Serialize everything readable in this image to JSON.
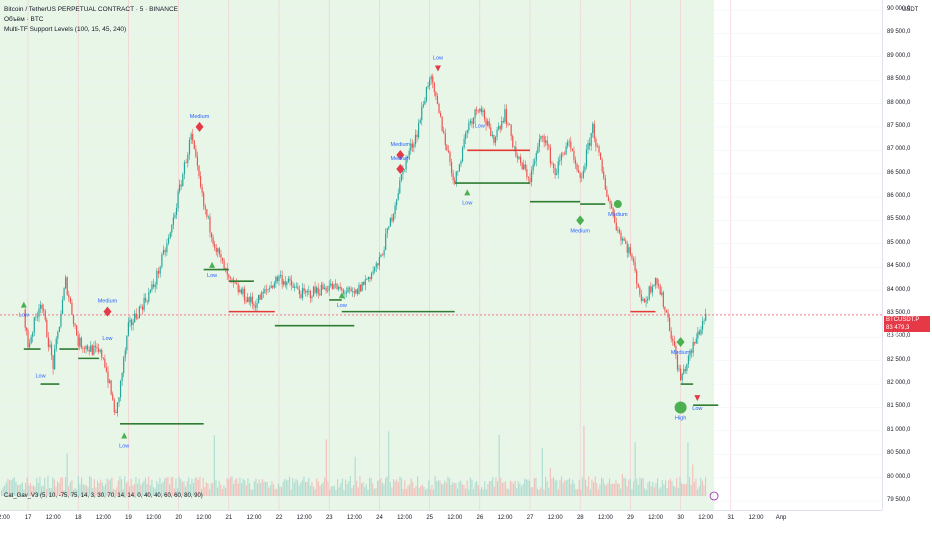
{
  "header": {
    "title": "Bitcoin / TetherUS PERPETUAL CONTRACT · 5 · BINANCE",
    "volume_label": "Объём · BTC",
    "indicator_label": "Multi-TF Support Levels (100, 15, 45, 240)"
  },
  "oscillator_label": "Cat_Gav_V3 (5, 10, -75, 75, 14, 3, 30, 70, 14, 14, 0, 40, 40, 60, 60, 80, 90)",
  "price_axis": {
    "unit": "USDT",
    "ticks": [
      "90 000,0",
      "89 500,0",
      "89 000,0",
      "88 500,0",
      "88 000,0",
      "87 500,0",
      "87 000,0",
      "86 500,0",
      "86 000,0",
      "85 500,0",
      "85 000,0",
      "84 500,0",
      "84 000,0",
      "83 500,0",
      "83 000,0",
      "82 500,0",
      "82 000,0",
      "81 500,0",
      "81 000,0",
      "80 500,0",
      "80 000,0",
      "79 500,0"
    ]
  },
  "current_price": {
    "symbol": "BTCUSDT.P",
    "price": "83 479,3",
    "countdown": "04:45"
  },
  "time_axis": {
    "ticks": [
      "2:00",
      "17",
      "12:00",
      "18",
      "12:00",
      "19",
      "12:00",
      "20",
      "12:00",
      "21",
      "12:00",
      "22",
      "12:00",
      "23",
      "12:00",
      "24",
      "12:00",
      "25",
      "12:00",
      "26",
      "12:00",
      "27",
      "12:00",
      "28",
      "12:00",
      "29",
      "12:00",
      "30",
      "12:00",
      "31",
      "12:00",
      "Апр"
    ]
  },
  "colors": {
    "background": "#ffffff",
    "session_fill": "#e8f6e8",
    "up_candle": "#26a69a",
    "down_candle": "#ef5350",
    "support_line_green": "#2e7d32",
    "support_line_red": "#e53935",
    "marker_green": "#4caf50",
    "marker_red": "#e53947",
    "label_blue": "#2962ff",
    "price_line": "#f23645"
  },
  "chart_data": {
    "type": "line",
    "symbol": "BTCUSDT.P",
    "ylim": [
      79300,
      90200
    ],
    "x_categories": [
      "16 (end)",
      "17",
      "18",
      "19",
      "20",
      "21",
      "22",
      "23",
      "24",
      "25",
      "26",
      "27",
      "28",
      "29",
      "30",
      "31",
      "Апр"
    ],
    "price_path": [
      {
        "x": "16 22:00",
        "y": 83600
      },
      {
        "x": "17 00:00",
        "y": 82800
      },
      {
        "x": "17 06:00",
        "y": 83800
      },
      {
        "x": "17 12:00",
        "y": 82400
      },
      {
        "x": "17 18:00",
        "y": 84200
      },
      {
        "x": "18 00:00",
        "y": 82900
      },
      {
        "x": "18 12:00",
        "y": 82600
      },
      {
        "x": "18 18:00",
        "y": 81300
      },
      {
        "x": "19 00:00",
        "y": 83200
      },
      {
        "x": "19 12:00",
        "y": 84100
      },
      {
        "x": "19 20:00",
        "y": 85200
      },
      {
        "x": "20 02:00",
        "y": 86500
      },
      {
        "x": "20 06:00",
        "y": 87300
      },
      {
        "x": "20 12:00",
        "y": 85800
      },
      {
        "x": "20 18:00",
        "y": 84900
      },
      {
        "x": "21 00:00",
        "y": 84200
      },
      {
        "x": "21 12:00",
        "y": 83700
      },
      {
        "x": "22 00:00",
        "y": 84300
      },
      {
        "x": "22 12:00",
        "y": 83900
      },
      {
        "x": "23 00:00",
        "y": 84100
      },
      {
        "x": "23 12:00",
        "y": 83900
      },
      {
        "x": "24 00:00",
        "y": 84600
      },
      {
        "x": "24 06:00",
        "y": 85600
      },
      {
        "x": "24 12:00",
        "y": 86700
      },
      {
        "x": "24 18:00",
        "y": 87400
      },
      {
        "x": "25 00:00",
        "y": 88600
      },
      {
        "x": "25 06:00",
        "y": 87500
      },
      {
        "x": "25 12:00",
        "y": 86300
      },
      {
        "x": "25 18:00",
        "y": 87500
      },
      {
        "x": "26 00:00",
        "y": 88000
      },
      {
        "x": "26 06:00",
        "y": 87200
      },
      {
        "x": "26 12:00",
        "y": 87800
      },
      {
        "x": "26 18:00",
        "y": 86800
      },
      {
        "x": "27 00:00",
        "y": 86400
      },
      {
        "x": "27 06:00",
        "y": 87400
      },
      {
        "x": "27 12:00",
        "y": 86500
      },
      {
        "x": "27 18:00",
        "y": 87200
      },
      {
        "x": "28 00:00",
        "y": 86300
      },
      {
        "x": "28 06:00",
        "y": 87500
      },
      {
        "x": "28 12:00",
        "y": 86200
      },
      {
        "x": "28 18:00",
        "y": 85300
      },
      {
        "x": "29 00:00",
        "y": 84800
      },
      {
        "x": "29 06:00",
        "y": 83700
      },
      {
        "x": "29 12:00",
        "y": 84300
      },
      {
        "x": "29 18:00",
        "y": 83400
      },
      {
        "x": "30 00:00",
        "y": 82100
      },
      {
        "x": "30 06:00",
        "y": 82800
      },
      {
        "x": "30 12:00",
        "y": 83500
      }
    ],
    "support_levels": [
      {
        "from": "16 22:00",
        "to": "17 06:00",
        "y": 82750,
        "color": "green"
      },
      {
        "from": "17 06:00",
        "to": "17 15:00",
        "y": 82000,
        "color": "green"
      },
      {
        "from": "17 15:00",
        "to": "18 00:00",
        "y": 82750,
        "color": "green"
      },
      {
        "from": "18 00:00",
        "to": "18 10:00",
        "y": 82550,
        "color": "green"
      },
      {
        "from": "18 20:00",
        "to": "20 12:00",
        "y": 81150,
        "color": "green"
      },
      {
        "from": "20 12:00",
        "to": "21 00:00",
        "y": 84450,
        "color": "green"
      },
      {
        "from": "21 00:00",
        "to": "21 12:00",
        "y": 84200,
        "color": "green"
      },
      {
        "from": "21 00:00",
        "to": "21 22:00",
        "y": 83550,
        "color": "red"
      },
      {
        "from": "21 22:00",
        "to": "23 12:00",
        "y": 83250,
        "color": "green"
      },
      {
        "from": "23 00:00",
        "to": "23 06:00",
        "y": 83800,
        "color": "green"
      },
      {
        "from": "23 06:00",
        "to": "25 12:00",
        "y": 83550,
        "color": "green"
      },
      {
        "from": "25 12:00",
        "to": "27 00:00",
        "y": 86300,
        "color": "green"
      },
      {
        "from": "25 18:00",
        "to": "27 00:00",
        "y": 87000,
        "color": "red"
      },
      {
        "from": "27 00:00",
        "to": "28 00:00",
        "y": 85900,
        "color": "green"
      },
      {
        "from": "28 00:00",
        "to": "28 12:00",
        "y": 85850,
        "color": "green"
      },
      {
        "from": "29 00:00",
        "to": "29 12:00",
        "y": 83550,
        "color": "red"
      },
      {
        "from": "30 00:00",
        "to": "30 06:00",
        "y": 82000,
        "color": "green"
      },
      {
        "from": "30 06:00",
        "to": "30 18:00",
        "y": 81550,
        "color": "green"
      }
    ],
    "markers": [
      {
        "x": "16 22:00",
        "y": 83700,
        "shape": "triangle-up",
        "color": "green",
        "label": "Low",
        "label_pos": "below"
      },
      {
        "x": "17 06:00",
        "y": 82400,
        "shape": "none",
        "color": "",
        "label": "Low",
        "label_pos": "below"
      },
      {
        "x": "18 14:00",
        "y": 83550,
        "shape": "diamond",
        "color": "red",
        "label": "Medium",
        "label_pos": "above"
      },
      {
        "x": "18 14:00",
        "y": 83200,
        "shape": "none",
        "color": "",
        "label": "Low",
        "label_pos": "below"
      },
      {
        "x": "18 22:00",
        "y": 80900,
        "shape": "triangle-up",
        "color": "green",
        "label": "Low",
        "label_pos": "below"
      },
      {
        "x": "20 10:00",
        "y": 87500,
        "shape": "diamond",
        "color": "red",
        "label": "Medium",
        "label_pos": "above"
      },
      {
        "x": "20 16:00",
        "y": 84550,
        "shape": "triangle-up",
        "color": "green",
        "label": "Low",
        "label_pos": "below"
      },
      {
        "x": "23 06:00",
        "y": 83900,
        "shape": "triangle-up",
        "color": "green",
        "label": "Low",
        "label_pos": "below"
      },
      {
        "x": "24 10:00",
        "y": 86900,
        "shape": "diamond",
        "color": "red",
        "label": "Medium",
        "label_pos": "above"
      },
      {
        "x": "24 10:00",
        "y": 86600,
        "shape": "diamond",
        "color": "red",
        "label": "Medium",
        "label_pos": "above"
      },
      {
        "x": "25 04:00",
        "y": 88750,
        "shape": "triangle-down",
        "color": "red",
        "label": "Low",
        "label_pos": "above"
      },
      {
        "x": "25 18:00",
        "y": 86100,
        "shape": "triangle-up",
        "color": "green",
        "label": "Low",
        "label_pos": "below"
      },
      {
        "x": "26 00:00",
        "y": 87300,
        "shape": "none",
        "color": "",
        "label": "Low",
        "label_pos": "above"
      },
      {
        "x": "28 00:00",
        "y": 85500,
        "shape": "diamond",
        "color": "green",
        "label": "Medium",
        "label_pos": "below"
      },
      {
        "x": "28 18:00",
        "y": 85850,
        "shape": "circle-small",
        "color": "green",
        "label": "Medium",
        "label_pos": "below"
      },
      {
        "x": "30 00:00",
        "y": 82900,
        "shape": "diamond",
        "color": "green",
        "label": "Medium",
        "label_pos": "below"
      },
      {
        "x": "30 00:00",
        "y": 81500,
        "shape": "circle",
        "color": "green",
        "label": "High",
        "label_pos": "below"
      },
      {
        "x": "30 08:00",
        "y": 81700,
        "shape": "triangle-down",
        "color": "red",
        "label": "Low",
        "label_pos": "below"
      }
    ]
  }
}
